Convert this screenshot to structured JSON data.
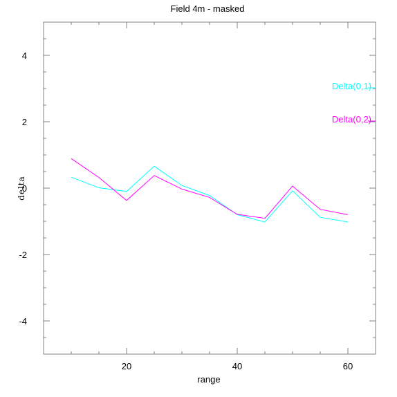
{
  "chart_data": {
    "type": "line",
    "title": "Field 4m - masked",
    "xlabel": "range",
    "ylabel": "delta",
    "xlim": [
      5,
      65
    ],
    "ylim": [
      -5,
      5
    ],
    "xticks": [
      20,
      40,
      60
    ],
    "yticks": [
      -4,
      -2,
      0,
      2,
      4
    ],
    "grid": false,
    "legend_placement": "right",
    "series": [
      {
        "name": "Delta(0,1)",
        "color": "#00ffff",
        "x": [
          10,
          15,
          20,
          25,
          30,
          35,
          40,
          45,
          50,
          55,
          60
        ],
        "y": [
          0.33,
          0.01,
          -0.1,
          0.66,
          0.08,
          -0.22,
          -0.8,
          -1.02,
          -0.08,
          -0.88,
          -1.02
        ]
      },
      {
        "name": "Delta(0,2)",
        "color": "#ff00ff",
        "x": [
          10,
          15,
          20,
          25,
          30,
          35,
          40,
          45,
          50,
          55,
          60
        ],
        "y": [
          0.89,
          0.32,
          -0.37,
          0.38,
          -0.03,
          -0.28,
          -0.79,
          -0.91,
          0.06,
          -0.64,
          -0.8
        ]
      }
    ]
  }
}
